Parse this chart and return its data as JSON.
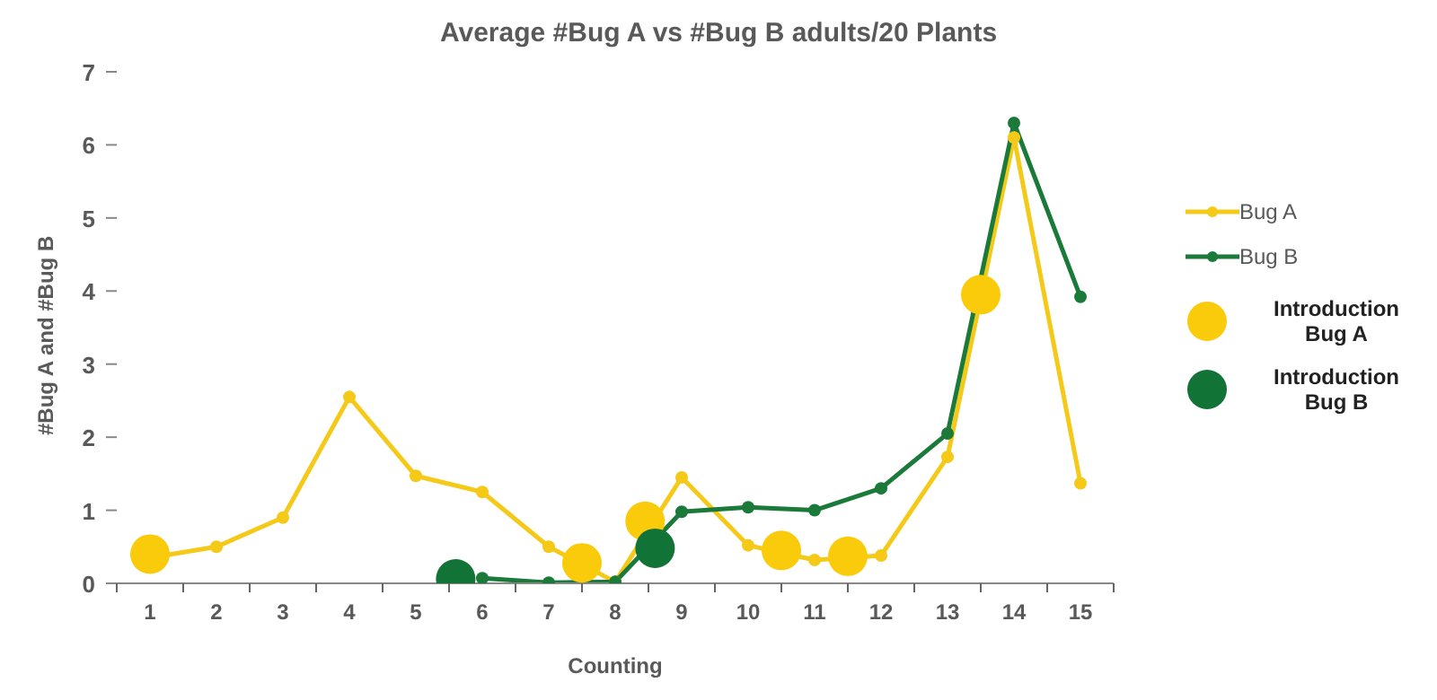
{
  "chart_data": {
    "type": "line",
    "title": "Average #Bug A vs #Bug B adults/20 Plants",
    "xlabel": "Counting",
    "ylabel": "#Bug A and #Bug B",
    "xlim": [
      0.5,
      15.5
    ],
    "xticks": [
      {
        "value": 0.5,
        "label": null
      },
      1,
      {
        "value": 1.5,
        "label": null
      },
      2,
      {
        "value": 2.5,
        "label": null
      },
      3,
      {
        "value": 3.5,
        "label": null
      },
      4,
      {
        "value": 4.5,
        "label": null
      },
      5,
      {
        "value": 5.5,
        "label": null
      },
      6,
      {
        "value": 6.5,
        "label": null
      },
      7,
      {
        "value": 7.5,
        "label": null
      },
      8,
      {
        "value": 8.5,
        "label": null
      },
      9,
      {
        "value": 9.5,
        "label": null
      },
      10,
      {
        "value": 10.5,
        "label": null
      },
      11,
      {
        "value": 11.5,
        "label": null
      },
      12,
      {
        "value": 12.5,
        "label": null
      },
      13,
      {
        "value": 13.5,
        "label": null
      },
      14,
      {
        "value": 14.5,
        "label": null
      },
      15,
      {
        "value": 15.5,
        "label": null
      }
    ],
    "ylim": [
      0,
      7
    ],
    "yticks": [
      0,
      1,
      2,
      3,
      4,
      5,
      6,
      7
    ],
    "grid": false,
    "legend": "right",
    "marker": "circle",
    "line_style": "solid",
    "series": [
      {
        "name": "Bug A",
        "color": "#f5c918",
        "x": [
          1,
          2,
          3,
          4,
          5,
          6,
          7,
          8,
          9,
          10,
          11,
          12,
          13,
          14,
          15
        ],
        "values": [
          0.35,
          0.5,
          0.9,
          2.55,
          1.47,
          1.25,
          0.5,
          0.02,
          1.45,
          0.52,
          0.32,
          0.38,
          1.73,
          6.1,
          1.37
        ]
      },
      {
        "name": "Bug B",
        "color": "#1b7a3a",
        "x": [
          6,
          7,
          8,
          9,
          10,
          11,
          12,
          13,
          14,
          15
        ],
        "values": [
          0.07,
          0.01,
          0.02,
          0.98,
          1.04,
          1.0,
          1.3,
          2.05,
          6.3,
          3.92
        ]
      },
      {
        "name": "Introduction Bug A",
        "type": "scatter",
        "color": "#f9cb0a",
        "x": [
          1,
          7.5,
          8.45,
          10.5,
          11.5,
          13.5
        ],
        "values": [
          0.4,
          0.28,
          0.85,
          0.45,
          0.37,
          3.95
        ]
      },
      {
        "name": "Introduction Bug B",
        "type": "scatter",
        "color": "#127336",
        "x": [
          5.6,
          8.6
        ],
        "values": [
          0.06,
          0.48
        ]
      }
    ]
  }
}
